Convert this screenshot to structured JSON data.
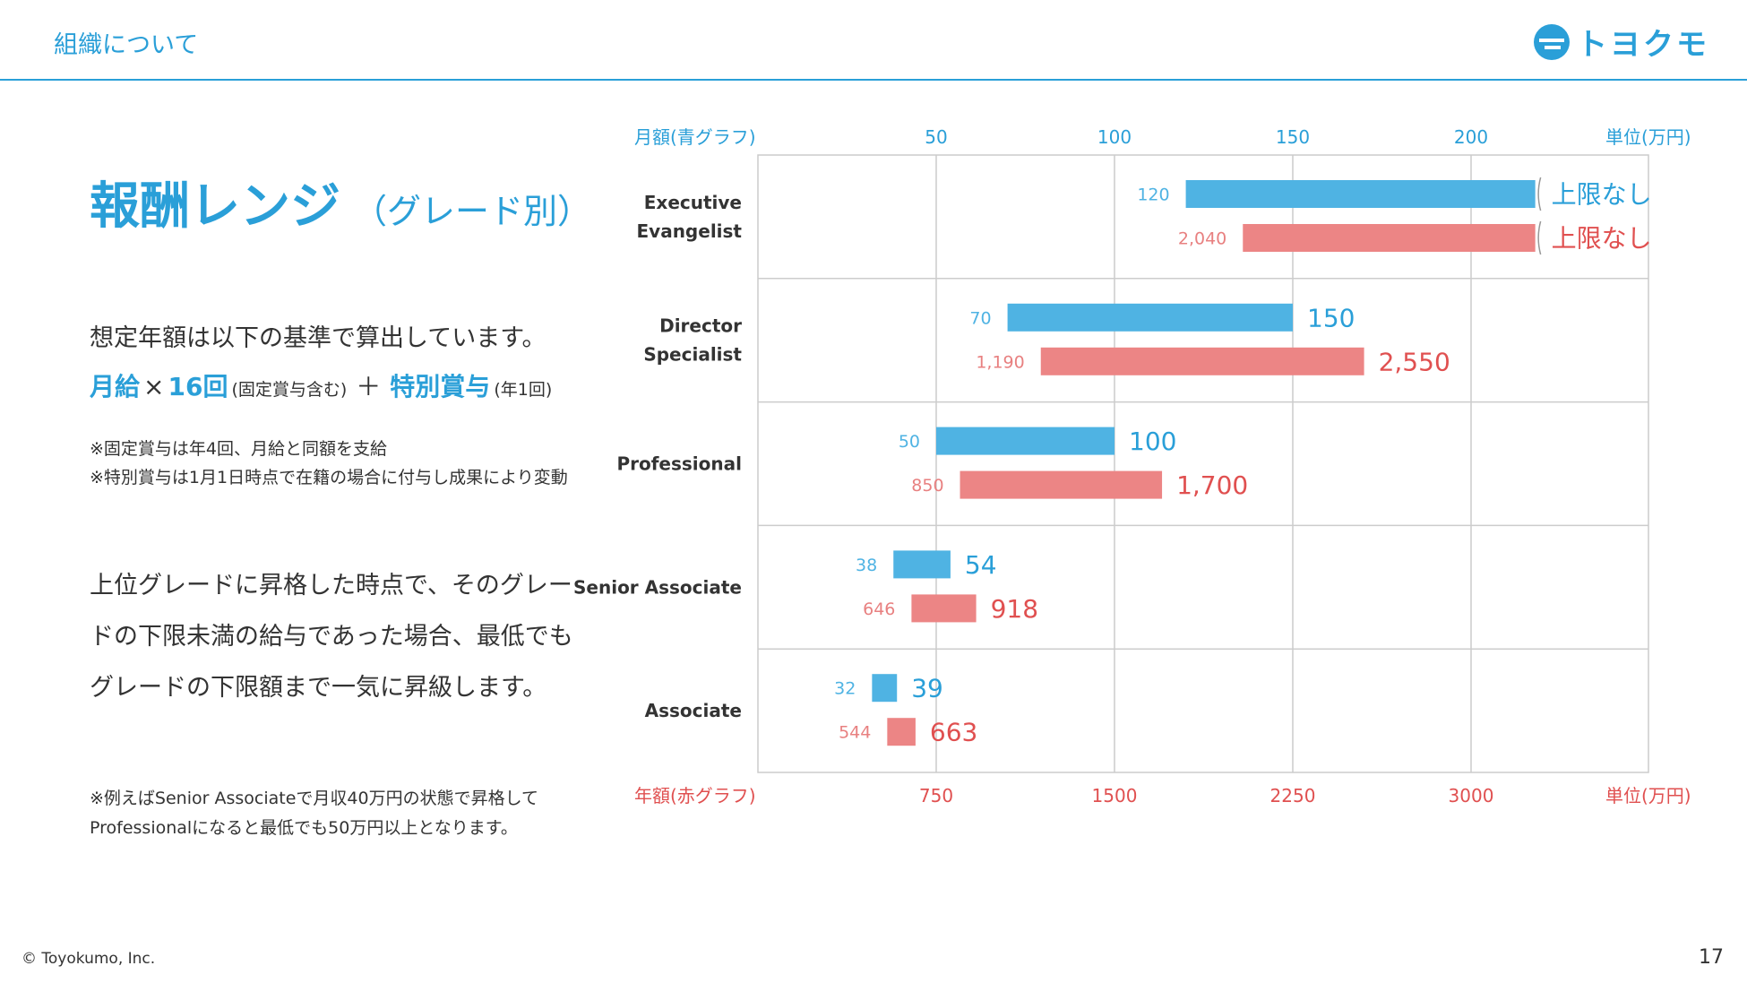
{
  "header": {
    "title": "組織について"
  },
  "logo": {
    "text": "トヨクモ"
  },
  "main": {
    "title": "報酬レンジ",
    "subtitle": "（グレード別）",
    "para1": "想定年額は以下の基準で算出しています。",
    "formula": {
      "monthly": "月給",
      "times": "×",
      "count": "16回",
      "count_note": "(固定賞与含む)",
      "plus": "＋",
      "bonus": "特別賞与",
      "bonus_note": "(年1回)"
    },
    "note1": "※固定賞与は年4回、月給と同額を支給",
    "note2": "※特別賞与は1月1日時点で在籍の場合に付与し成果により変動",
    "para2": "上位グレードに昇格した時点で、そのグレードの下限未満の給与であった場合、最低でもグレードの下限額まで一気に昇級します。",
    "example": "※例えばSenior Associateで月収40万円の状態で昇格してProfessionalになると最低でも50万円以上となります。"
  },
  "footer": {
    "copyright": "© Toyokumo, Inc.",
    "page": "17"
  },
  "colors": {
    "accent": "#2a9fd8",
    "blue_bar": "#4fb3e3",
    "red_bar": "#ec8585",
    "red_text": "#e05050"
  },
  "chart_data": {
    "type": "bar",
    "orientation": "horizontal-range",
    "categories": [
      "Executive Evangelist",
      "Director Specialist",
      "Professional",
      "Senior Associate",
      "Associate"
    ],
    "category_lines": [
      [
        "Executive",
        "Evangelist"
      ],
      [
        "Director",
        "Specialist"
      ],
      [
        "Professional"
      ],
      [
        "Senior Associate"
      ],
      [
        "Associate"
      ]
    ],
    "series": [
      {
        "name": "月額(青グラフ)",
        "axis": "top",
        "unit": "単位(万円)",
        "low": [
          120,
          70,
          50,
          38,
          32
        ],
        "high": [
          null,
          150,
          100,
          54,
          39
        ],
        "low_labels": [
          "120",
          "70",
          "50",
          "38",
          "32"
        ],
        "high_labels": [
          "上限なし",
          "150",
          "100",
          "54",
          "39"
        ],
        "open_end_value": 218
      },
      {
        "name": "年額(赤グラフ)",
        "axis": "bottom",
        "unit": "単位(万円)",
        "low": [
          2040,
          1190,
          850,
          646,
          544
        ],
        "high": [
          null,
          2550,
          1700,
          918,
          663
        ],
        "low_labels": [
          "2,040",
          "1,190",
          "850",
          "646",
          "544"
        ],
        "high_labels": [
          "上限なし",
          "2,550",
          "1,700",
          "918",
          "663"
        ],
        "open_end_value": 3270
      }
    ],
    "top_axis": {
      "label": "月額(青グラフ)",
      "ticks": [
        50,
        100,
        150,
        200
      ],
      "unit_label": "単位(万円)",
      "range": [
        0,
        250
      ]
    },
    "bottom_axis": {
      "label": "年額(赤グラフ)",
      "ticks": [
        750,
        1500,
        2250,
        3000
      ],
      "unit_label": "単位(万円)",
      "range": [
        0,
        3750
      ]
    },
    "grid": true
  }
}
